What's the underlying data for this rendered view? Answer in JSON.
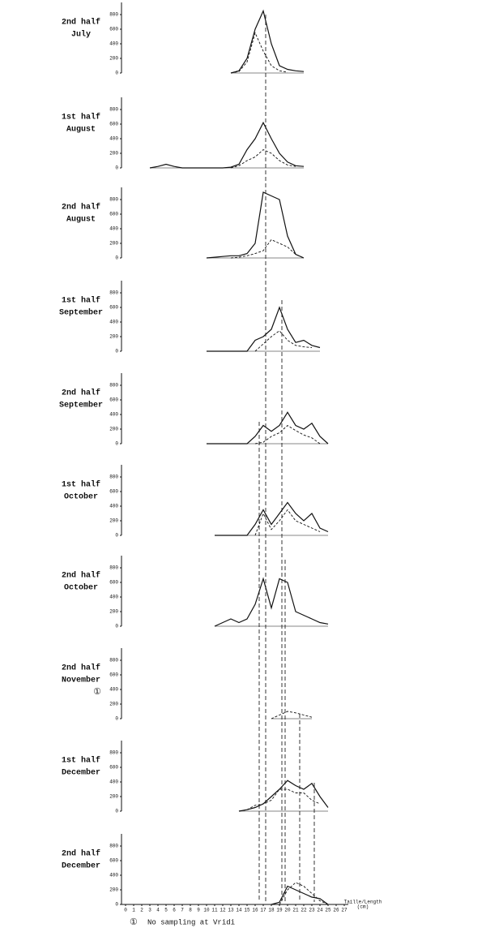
{
  "chart_data": [
    {
      "type": "line",
      "title": [
        "2nd half",
        "July"
      ],
      "ylim": [
        0,
        900
      ],
      "yticks": [
        0,
        200,
        400,
        600,
        800
      ],
      "x": [
        13,
        14,
        15,
        16,
        17,
        18,
        19,
        20,
        21,
        22
      ],
      "series": [
        {
          "dash": false,
          "values": [
            0,
            30,
            200,
            600,
            850,
            400,
            100,
            50,
            30,
            20
          ]
        },
        {
          "dash": true,
          "values": [
            0,
            20,
            150,
            550,
            300,
            100,
            30,
            10,
            null,
            null
          ]
        }
      ]
    },
    {
      "type": "line",
      "title": [
        "1st half",
        "August"
      ],
      "ylim": [
        0,
        900
      ],
      "yticks": [
        0,
        200,
        400,
        600,
        800
      ],
      "x": [
        3,
        4,
        5,
        6,
        7,
        8,
        9,
        10,
        11,
        12,
        13,
        14,
        15,
        16,
        17,
        18,
        19,
        20,
        21,
        22
      ],
      "series": [
        {
          "dash": false,
          "values": [
            0,
            20,
            50,
            20,
            0,
            0,
            0,
            0,
            0,
            0,
            10,
            50,
            250,
            400,
            620,
            400,
            200,
            80,
            30,
            20
          ]
        },
        {
          "dash": true,
          "values": [
            null,
            null,
            null,
            null,
            null,
            null,
            null,
            null,
            null,
            null,
            0,
            30,
            100,
            150,
            250,
            200,
            100,
            40,
            20,
            null
          ]
        }
      ]
    },
    {
      "type": "line",
      "title": [
        "2nd half",
        "August"
      ],
      "ylim": [
        0,
        900
      ],
      "yticks": [
        0,
        200,
        400,
        600,
        800
      ],
      "x": [
        10,
        11,
        12,
        13,
        14,
        15,
        16,
        17,
        18,
        19,
        20,
        21,
        22
      ],
      "series": [
        {
          "dash": false,
          "values": [
            0,
            10,
            20,
            30,
            30,
            60,
            200,
            900,
            850,
            800,
            300,
            50,
            0
          ]
        },
        {
          "dash": true,
          "values": [
            null,
            null,
            null,
            0,
            10,
            30,
            60,
            100,
            250,
            200,
            150,
            50,
            0
          ]
        }
      ]
    },
    {
      "type": "line",
      "title": [
        "1st half",
        "September"
      ],
      "ylim": [
        0,
        900
      ],
      "yticks": [
        0,
        200,
        400,
        600,
        800
      ],
      "x": [
        10,
        11,
        12,
        13,
        14,
        15,
        16,
        17,
        18,
        19,
        20,
        21,
        22,
        23,
        24
      ],
      "series": [
        {
          "dash": false,
          "values": [
            0,
            0,
            0,
            0,
            0,
            0,
            150,
            200,
            300,
            600,
            300,
            120,
            150,
            80,
            50
          ]
        },
        {
          "dash": true,
          "values": [
            null,
            null,
            null,
            null,
            null,
            null,
            0,
            100,
            200,
            280,
            150,
            80,
            60,
            50,
            null
          ]
        }
      ]
    },
    {
      "type": "line",
      "title": [
        "2nd half",
        "September"
      ],
      "ylim": [
        0,
        900
      ],
      "yticks": [
        0,
        200,
        400,
        600,
        800
      ],
      "x": [
        10,
        11,
        12,
        13,
        14,
        15,
        16,
        17,
        18,
        19,
        20,
        21,
        22,
        23,
        24,
        25
      ],
      "series": [
        {
          "dash": false,
          "values": [
            0,
            0,
            0,
            0,
            0,
            0,
            100,
            250,
            170,
            250,
            430,
            250,
            200,
            280,
            100,
            0
          ]
        },
        {
          "dash": true,
          "values": [
            null,
            null,
            null,
            null,
            null,
            null,
            0,
            20,
            100,
            150,
            250,
            180,
            120,
            80,
            0,
            null
          ]
        }
      ]
    },
    {
      "type": "line",
      "title": [
        "1st half",
        "October"
      ],
      "ylim": [
        0,
        900
      ],
      "yticks": [
        0,
        200,
        400,
        600,
        800
      ],
      "x": [
        11,
        12,
        13,
        14,
        15,
        16,
        17,
        18,
        19,
        20,
        21,
        22,
        23,
        24,
        25
      ],
      "series": [
        {
          "dash": false,
          "values": [
            0,
            0,
            0,
            0,
            0,
            150,
            350,
            150,
            300,
            450,
            300,
            200,
            300,
            100,
            50
          ]
        },
        {
          "dash": true,
          "values": [
            null,
            null,
            null,
            null,
            null,
            0,
            300,
            80,
            200,
            350,
            200,
            150,
            100,
            50,
            null
          ]
        }
      ]
    },
    {
      "type": "line",
      "title": [
        "2nd half",
        "October"
      ],
      "ylim": [
        0,
        900
      ],
      "yticks": [
        0,
        200,
        400,
        600,
        800
      ],
      "x": [
        11,
        12,
        13,
        14,
        15,
        16,
        17,
        18,
        19,
        20,
        21,
        22,
        23,
        24,
        25
      ],
      "series": [
        {
          "dash": false,
          "values": [
            0,
            50,
            100,
            50,
            100,
            300,
            650,
            250,
            650,
            600,
            200,
            150,
            100,
            50,
            30
          ]
        }
      ]
    },
    {
      "type": "line",
      "title": [
        "2nd half",
        "November"
      ],
      "note_marker": "①",
      "ylim": [
        0,
        900
      ],
      "yticks": [
        0,
        200,
        400,
        600,
        800
      ],
      "x": [
        18,
        19,
        20,
        21,
        22,
        23
      ],
      "series": [
        {
          "dash": true,
          "values": [
            0,
            50,
            100,
            80,
            50,
            20
          ]
        }
      ]
    },
    {
      "type": "line",
      "title": [
        "1st half",
        "December"
      ],
      "ylim": [
        0,
        900
      ],
      "yticks": [
        0,
        200,
        400,
        600,
        800
      ],
      "x": [
        14,
        15,
        16,
        17,
        18,
        19,
        20,
        21,
        22,
        23,
        24,
        25
      ],
      "series": [
        {
          "dash": false,
          "values": [
            0,
            20,
            50,
            100,
            200,
            300,
            420,
            350,
            300,
            380,
            200,
            50
          ]
        },
        {
          "dash": true,
          "values": [
            0,
            20,
            80,
            100,
            150,
            300,
            300,
            250,
            250,
            150,
            100,
            null
          ]
        }
      ]
    },
    {
      "type": "line",
      "title": [
        "2nd half",
        "December"
      ],
      "ylim": [
        0,
        900
      ],
      "yticks": [
        0,
        200,
        400,
        600,
        800
      ],
      "xlim": [
        0,
        27
      ],
      "xticks": [
        0,
        1,
        2,
        3,
        4,
        5,
        6,
        7,
        8,
        9,
        10,
        11,
        12,
        13,
        14,
        15,
        16,
        17,
        18,
        19,
        20,
        21,
        22,
        23,
        24,
        25,
        26,
        27
      ],
      "xlabel": [
        "Taille/Length",
        "(cm)"
      ],
      "x": [
        18,
        19,
        20,
        21,
        22,
        23,
        24,
        25
      ],
      "series": [
        {
          "dash": false,
          "values": [
            0,
            30,
            250,
            200,
            150,
            100,
            80,
            0
          ]
        },
        {
          "dash": true,
          "values": [
            null,
            0,
            200,
            300,
            250,
            150,
            50,
            0
          ]
        }
      ]
    }
  ],
  "note": {
    "marker": "①",
    "text": "No sampling at Vridi"
  }
}
